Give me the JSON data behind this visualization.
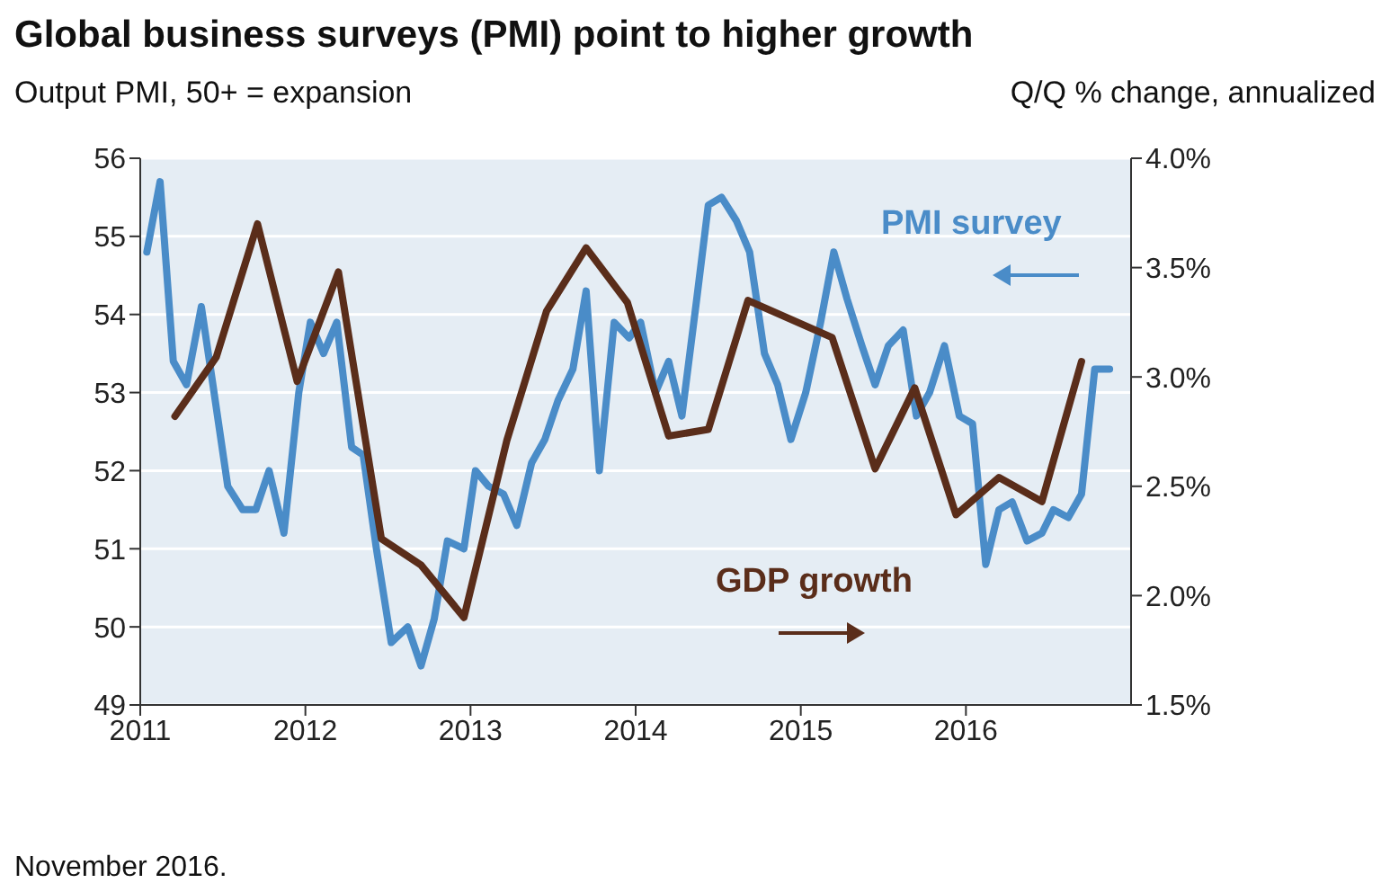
{
  "chart_data": {
    "type": "line",
    "title": "Global business surveys (PMI) point to higher growth",
    "ylabel": "Output PMI, 50+ = expansion",
    "y2label": "Q/Q % change, annualized",
    "xlim": [
      2011,
      2017
    ],
    "xticks": [
      2011,
      2012,
      2013,
      2014,
      2015,
      2016
    ],
    "ylim": [
      49,
      56
    ],
    "yticks": [
      49,
      50,
      51,
      52,
      53,
      54,
      55,
      56
    ],
    "y2lim": [
      1.5,
      4.0
    ],
    "y2ticks": [
      {
        "value": 1.5,
        "label": "1.5%"
      },
      {
        "value": 2.0,
        "label": "2.0%"
      },
      {
        "value": 2.5,
        "label": "2.5%"
      },
      {
        "value": 3.0,
        "label": "3.0%"
      },
      {
        "value": 3.5,
        "label": "3.5%"
      },
      {
        "value": 4.0,
        "label": "4.0%"
      }
    ],
    "grid": "y",
    "legend": false,
    "marker": "none",
    "line_style": "solid",
    "series": [
      {
        "name": "PMI survey",
        "color": "#4a8cc8",
        "x": [
          2011.04,
          2011.12,
          2011.2,
          2011.28,
          2011.37,
          2011.44,
          2011.53,
          2011.62,
          2011.7,
          2011.78,
          2011.87,
          2011.96,
          2012.03,
          2012.11,
          2012.19,
          2012.28,
          2012.35,
          2012.43,
          2012.52,
          2012.62,
          2012.7,
          2012.78,
          2012.86,
          2012.96,
          2013.03,
          2013.11,
          2013.2,
          2013.28,
          2013.37,
          2013.45,
          2013.53,
          2013.62,
          2013.7,
          2013.78,
          2013.87,
          2013.96,
          2014.03,
          2014.12,
          2014.2,
          2014.28,
          2014.37,
          2014.44,
          2014.52,
          2014.61,
          2014.69,
          2014.78,
          2014.86,
          2014.94,
          2015.03,
          2015.12,
          2015.2,
          2015.28,
          2015.37,
          2015.45,
          2015.53,
          2015.62,
          2015.7,
          2015.78,
          2015.87,
          2015.96,
          2016.04,
          2016.12,
          2016.2,
          2016.28,
          2016.37,
          2016.46,
          2016.53,
          2016.62,
          2016.7,
          2016.78,
          2016.87
        ],
        "values": [
          54.8,
          55.7,
          53.4,
          53.1,
          54.1,
          53.1,
          51.8,
          51.5,
          51.5,
          52.0,
          51.2,
          53.0,
          53.9,
          53.5,
          53.9,
          52.3,
          52.2,
          51.0,
          49.8,
          50.0,
          49.5,
          50.1,
          51.1,
          51.0,
          52.0,
          51.8,
          51.7,
          51.3,
          52.1,
          52.4,
          52.9,
          53.3,
          54.3,
          52.0,
          53.9,
          53.7,
          53.9,
          53.0,
          53.4,
          52.7,
          54.2,
          55.4,
          55.5,
          55.2,
          54.8,
          53.5,
          53.1,
          52.4,
          53.0,
          53.9,
          54.8,
          54.2,
          53.6,
          53.1,
          53.6,
          53.8,
          52.7,
          53.0,
          53.6,
          52.7,
          52.6,
          50.8,
          51.5,
          51.6,
          51.1,
          51.2,
          51.5,
          51.4,
          51.7,
          53.3,
          53.3
        ]
      },
      {
        "name": "GDP growth",
        "color": "#5a2d1a",
        "axis": "y2",
        "x": [
          2011.21,
          2011.46,
          2011.71,
          2011.95,
          2012.2,
          2012.46,
          2012.7,
          2012.96,
          2013.22,
          2013.46,
          2013.7,
          2013.95,
          2014.2,
          2014.44,
          2014.68,
          2015.19,
          2015.45,
          2015.69,
          2015.94,
          2016.2,
          2016.46,
          2016.7
        ],
        "values": [
          2.82,
          3.09,
          3.7,
          2.98,
          3.48,
          2.26,
          2.14,
          1.9,
          2.71,
          3.3,
          3.59,
          3.34,
          2.73,
          2.76,
          3.35,
          3.18,
          2.58,
          2.95,
          2.37,
          2.54,
          2.43,
          3.07
        ]
      }
    ],
    "annotations": [
      "November 2016."
    ]
  }
}
